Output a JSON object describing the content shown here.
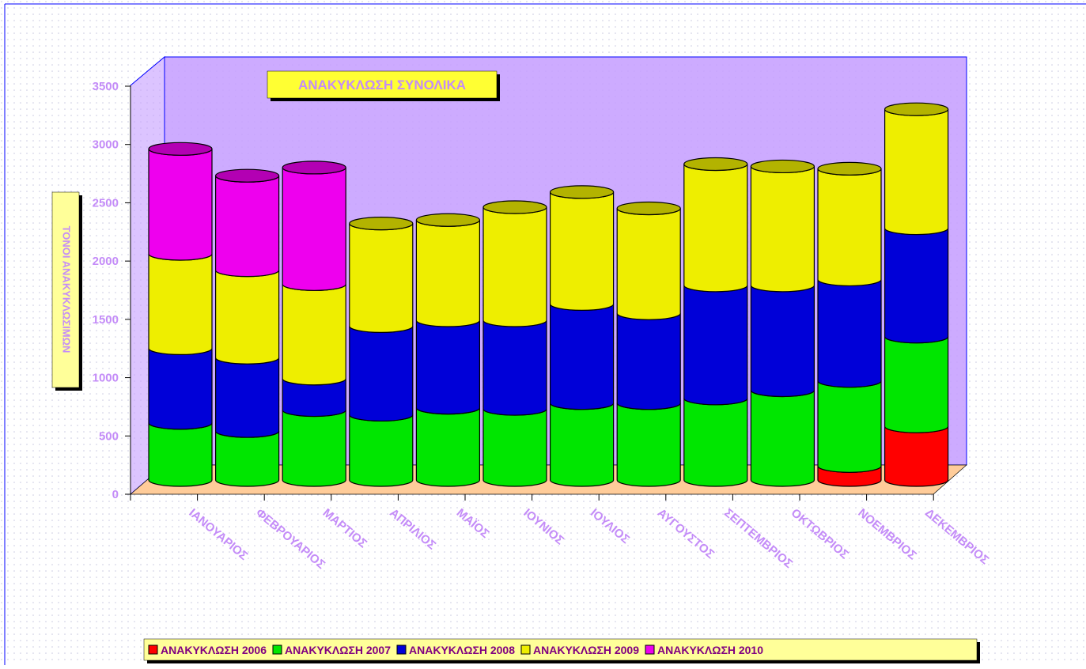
{
  "chart_data": {
    "type": "stacked-cylinder",
    "title": "ΑΝΑΚΥΚΛΩΣΗ ΣΥΝΟΛΙΚΑ",
    "y_label": "ΤΟΝΟΙ ΑΝΑΚΥΚΛΩΣΙΜΩΝ",
    "categories": [
      "ΙΑΝΟΥΑΡΙΟΣ",
      "ΦΕΒΡΟΥΑΡΙΟΣ",
      "ΜΑΡΤΙΟΣ",
      "ΑΠΡΙΛΙΟΣ",
      "ΜΑΪΟΣ",
      "ΙΟΥΝΙΟΣ",
      "ΙΟΥΛΙΟΣ",
      "ΑΥΓΟΥΣΤΟΣ",
      "ΣΕΠΤΕΜΒΡΙΟΣ",
      "ΟΚΤΩΒΡΙΟΣ",
      "ΝΟΕΜΒΡΙΟΣ",
      "ΔΕΚΕΜΒΡΙΟΣ"
    ],
    "series": [
      {
        "name": "ΑΝΑΚΥΚΛΩΣΗ 2006",
        "color": "#ff0000",
        "values": [
          null,
          null,
          null,
          null,
          null,
          null,
          null,
          null,
          null,
          null,
          120,
          460
        ]
      },
      {
        "name": "ΑΝΑΚΥΚΛΩΣΗ 2007",
        "color": "#00e600",
        "values": [
          490,
          420,
          600,
          560,
          620,
          610,
          660,
          660,
          700,
          770,
          730,
          770
        ]
      },
      {
        "name": "ΑΝΑΚΥΚΛΩΣΗ 2008",
        "color": "#0000d8",
        "values": [
          640,
          630,
          270,
          760,
          750,
          760,
          850,
          770,
          970,
          900,
          870,
          930
        ]
      },
      {
        "name": "ΑΝΑΚΥΚΛΩΣΗ 2009",
        "color": "#eeee00",
        "values": [
          810,
          750,
          810,
          880,
          860,
          970,
          960,
          900,
          1040,
          1020,
          950,
          1020
        ]
      },
      {
        "name": "ΑΝΑΚΥΚΛΩΣΗ 2010",
        "color": "#ee00ee",
        "values": [
          900,
          810,
          1000,
          null,
          null,
          null,
          null,
          null,
          null,
          null,
          null,
          null
        ]
      }
    ],
    "ylim": [
      0,
      3500
    ],
    "yticks": [
      0,
      500,
      1000,
      1500,
      2000,
      2500,
      3000,
      3500
    ]
  }
}
